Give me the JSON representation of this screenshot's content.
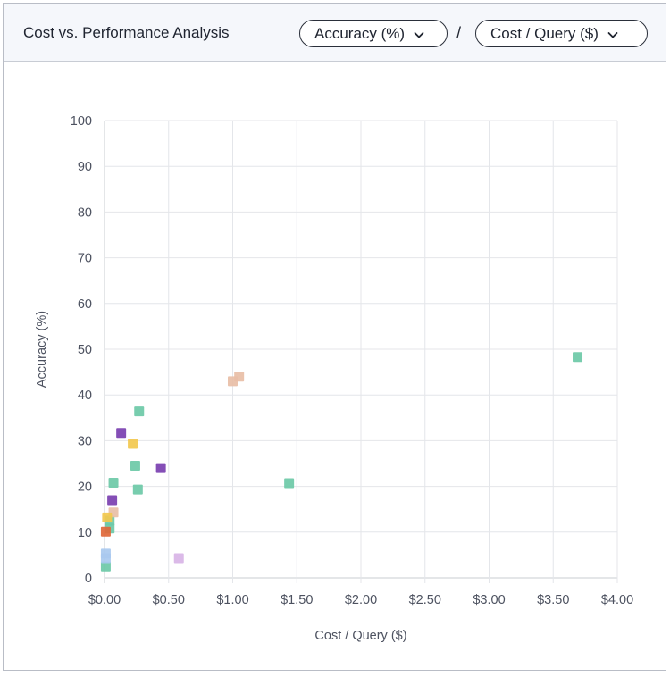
{
  "header": {
    "title": "Cost vs. Performance Analysis",
    "y_selector": "Accuracy (%)",
    "x_selector": "Cost / Query ($)",
    "separator": "/",
    "chevron_icon": "chevron-down-icon"
  },
  "chart_data": {
    "type": "scatter",
    "xlabel": "Cost / Query ($)",
    "ylabel": "Accuracy (%)",
    "xlim": [
      0,
      4
    ],
    "ylim": [
      0,
      100
    ],
    "x_ticks": [
      0,
      0.5,
      1.0,
      1.5,
      2.0,
      2.5,
      3.0,
      3.5,
      4.0
    ],
    "x_tick_labels": [
      "$0.00",
      "$0.50",
      "$1.00",
      "$1.50",
      "$2.00",
      "$2.50",
      "$3.00",
      "$3.50",
      "$4.00"
    ],
    "y_ticks": [
      0,
      10,
      20,
      30,
      40,
      50,
      60,
      70,
      80,
      90,
      100
    ],
    "y_tick_labels": [
      "0",
      "10",
      "20",
      "30",
      "40",
      "50",
      "60",
      "70",
      "80",
      "90",
      "100"
    ],
    "grid": true,
    "marker": "square",
    "points": [
      {
        "x": 3.69,
        "y": 48.3,
        "color": "#6cc9a7"
      },
      {
        "x": 1.44,
        "y": 20.7,
        "color": "#6cc9a7"
      },
      {
        "x": 0.27,
        "y": 36.4,
        "color": "#6cc9a7"
      },
      {
        "x": 0.24,
        "y": 24.5,
        "color": "#6cc9a7"
      },
      {
        "x": 0.26,
        "y": 19.3,
        "color": "#6cc9a7"
      },
      {
        "x": 0.07,
        "y": 20.8,
        "color": "#6cc9a7"
      },
      {
        "x": 0.04,
        "y": 12.5,
        "color": "#6cc9a7"
      },
      {
        "x": 0.04,
        "y": 10.8,
        "color": "#6cc9a7"
      },
      {
        "x": 0.01,
        "y": 2.5,
        "color": "#6cc9a7"
      },
      {
        "x": 1.05,
        "y": 44.0,
        "color": "#e8bea6"
      },
      {
        "x": 1.0,
        "y": 43.0,
        "color": "#e8bea6"
      },
      {
        "x": 0.07,
        "y": 14.3,
        "color": "#e8bea6"
      },
      {
        "x": 0.13,
        "y": 31.7,
        "color": "#7a3fb0"
      },
      {
        "x": 0.44,
        "y": 24.0,
        "color": "#7a3fb0"
      },
      {
        "x": 0.06,
        "y": 17.0,
        "color": "#7a3fb0"
      },
      {
        "x": 0.22,
        "y": 29.3,
        "color": "#f2c84e"
      },
      {
        "x": 0.02,
        "y": 13.2,
        "color": "#f2c84e"
      },
      {
        "x": 0.58,
        "y": 4.3,
        "color": "#d8b4e6"
      },
      {
        "x": 0.01,
        "y": 5.3,
        "color": "#a9c9ef"
      },
      {
        "x": 0.01,
        "y": 4.3,
        "color": "#a9c9ef"
      },
      {
        "x": 0.01,
        "y": 10.1,
        "color": "#e0683a"
      }
    ]
  },
  "colors": {
    "grid": "#e4e6ea",
    "axis": "#c9ccd2",
    "text": "#4d5260",
    "header_bg": "#f5f7fb"
  }
}
